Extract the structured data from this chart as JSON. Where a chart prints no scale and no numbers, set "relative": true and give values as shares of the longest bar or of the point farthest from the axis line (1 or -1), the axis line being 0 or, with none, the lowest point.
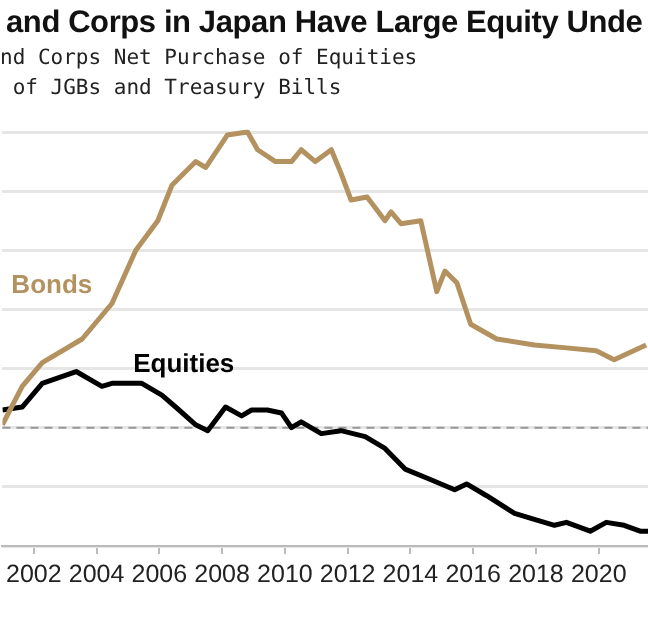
{
  "chart_data": {
    "type": "line",
    "title": "and Corps in Japan Have Large Equity Unde",
    "subtitle": "nd Corps Net Purchase of Equities\n of JGBs and Treasury Bills",
    "relative": true,
    "xlim": [
      2001,
      2021.57
    ],
    "xticks": [
      2002,
      2004,
      2006,
      2008,
      2010,
      2012,
      2014,
      2016,
      2018,
      2020
    ],
    "grid": "y",
    "legend": false,
    "marker": "none",
    "line_style": "solid",
    "ref_lines": [
      {
        "axis": "y",
        "value": 0,
        "color": "#999999",
        "line_style": "dashed"
      }
    ],
    "series": [
      {
        "name": "Bonds",
        "color": "#b39260",
        "x": [
          2001.0,
          2001.63,
          2002.27,
          2003.54,
          2004.49,
          2005.25,
          2005.95,
          2006.4,
          2007.16,
          2007.48,
          2008.17,
          2008.81,
          2009.13,
          2009.7,
          2010.21,
          2010.52,
          2010.97,
          2011.48,
          2011.79,
          2012.11,
          2012.62,
          2013.19,
          2013.38,
          2013.7,
          2014.33,
          2014.84,
          2015.1,
          2015.48,
          2015.92,
          2016.75,
          2017.95,
          2018.97,
          2019.92,
          2020.49,
          2021.51
        ],
        "values": [
          0.01,
          0.14,
          0.22,
          0.3,
          0.42,
          0.6,
          0.7,
          0.82,
          0.9,
          0.88,
          0.99,
          1.0,
          0.94,
          0.9,
          0.9,
          0.94,
          0.9,
          0.94,
          0.86,
          0.77,
          0.78,
          0.7,
          0.73,
          0.69,
          0.7,
          0.46,
          0.53,
          0.49,
          0.35,
          0.3,
          0.28,
          0.27,
          0.26,
          0.23,
          0.28
        ]
      },
      {
        "name": "Equities",
        "color": "#000000",
        "x": [
          2001.0,
          2001.63,
          2002.27,
          2003.35,
          2004.17,
          2004.49,
          2005.44,
          2006.08,
          2006.52,
          2007.16,
          2007.54,
          2008.11,
          2008.62,
          2008.94,
          2009.44,
          2009.89,
          2010.21,
          2010.52,
          2011.16,
          2011.79,
          2012.56,
          2013.19,
          2013.83,
          2014.52,
          2015.41,
          2015.79,
          2016.43,
          2017.32,
          2017.95,
          2018.59,
          2018.97,
          2019.73,
          2020.24,
          2020.81,
          2021.32,
          2021.57
        ],
        "values": [
          0.06,
          0.07,
          0.15,
          0.19,
          0.14,
          0.15,
          0.15,
          0.11,
          0.07,
          0.01,
          -0.01,
          0.07,
          0.04,
          0.06,
          0.06,
          0.05,
          0.0,
          0.02,
          -0.02,
          -0.01,
          -0.03,
          -0.07,
          -0.14,
          -0.17,
          -0.21,
          -0.19,
          -0.23,
          -0.29,
          -0.31,
          -0.33,
          -0.32,
          -0.35,
          -0.32,
          -0.33,
          -0.35,
          -0.35
        ]
      }
    ]
  }
}
